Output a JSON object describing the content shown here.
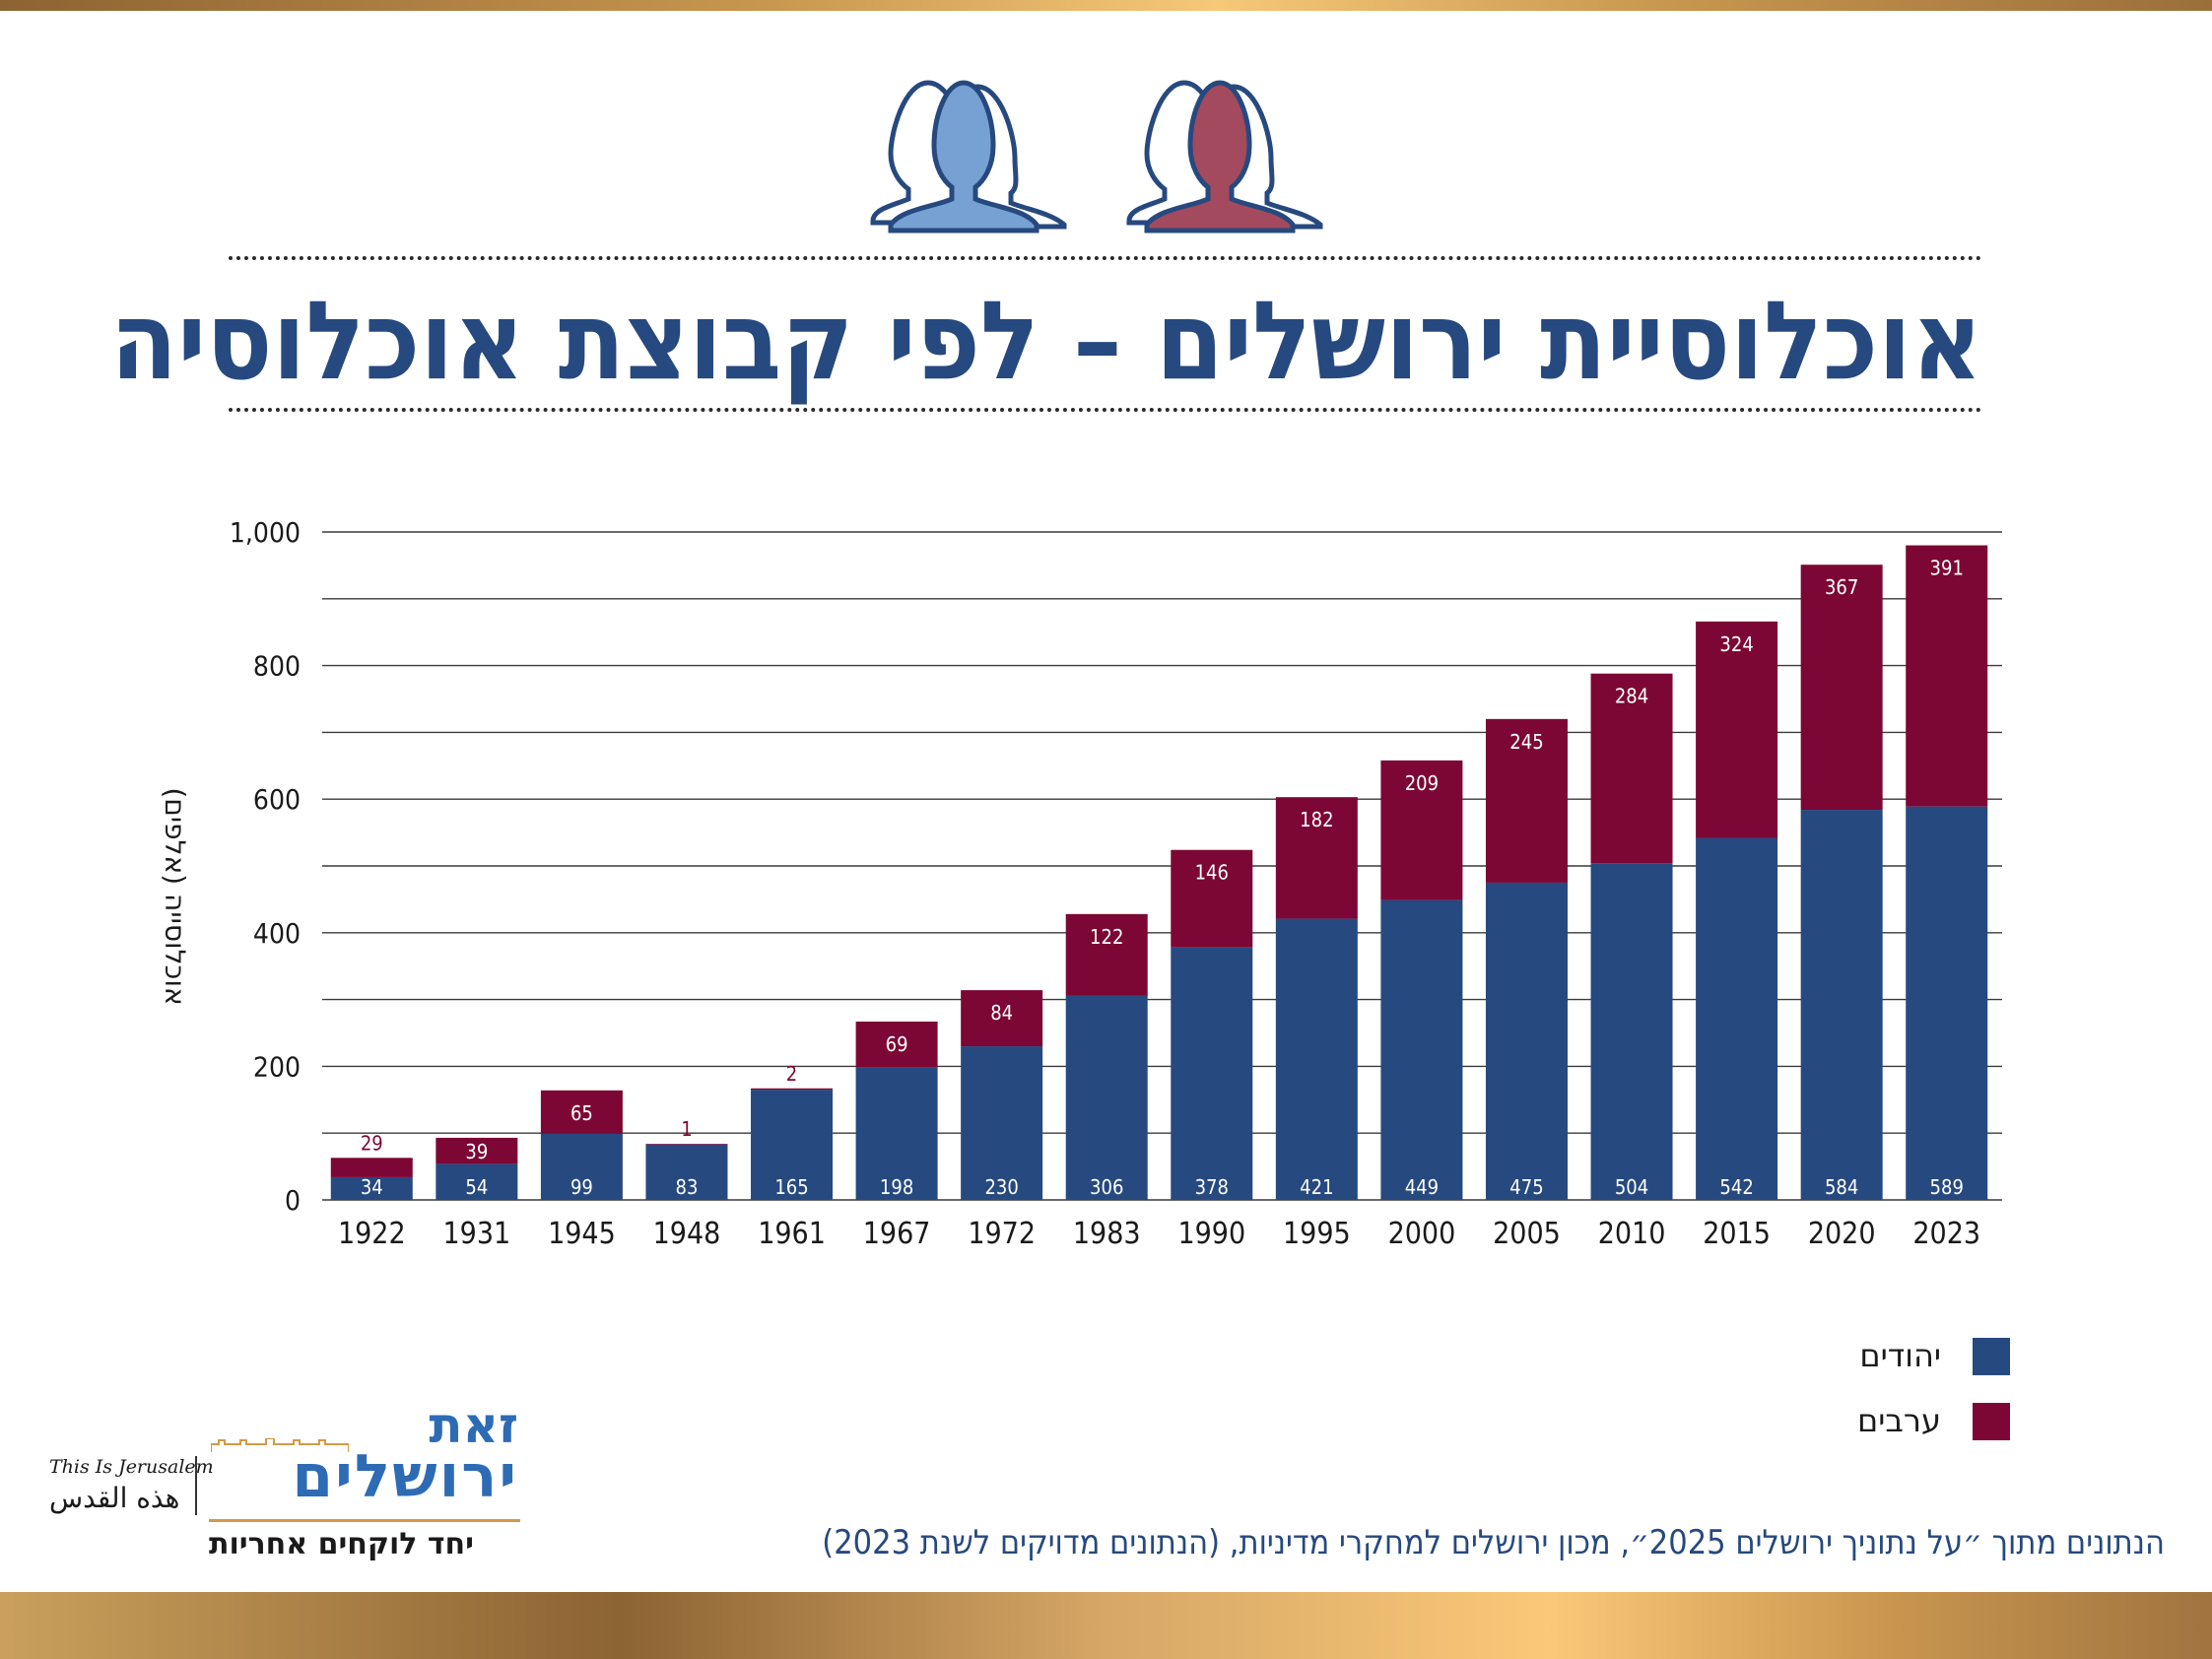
{
  "title": "אוכלוסיית ירושלים – לפי קבוצת אוכלוסיה",
  "legend": [
    {
      "label": "יהודים",
      "color": "#26497f"
    },
    {
      "label": "ערבים",
      "color": "#7d0734"
    }
  ],
  "footer_note": "הנתונים מתוך ״על נתוניך ירושלים 2025״, מכון ירושלים למחקרי מדיניות, (הנתונים מדויקים לשנת 2023)",
  "logo": {
    "english": "This Is Jerusalem",
    "arabic": "هذه القدس",
    "hebrew_top": "זאת",
    "hebrew_main": "ירושלים",
    "tagline": "יחד לוקחים אחריות"
  },
  "icons": [
    {
      "name": "jews-people-icon",
      "fill": "#77a1d3",
      "stroke": "#26497f"
    },
    {
      "name": "arabs-people-icon",
      "fill": "#a34a5e",
      "stroke": "#26497f"
    }
  ],
  "chart_data": {
    "type": "bar",
    "stacked": true,
    "categories": [
      "1922",
      "1931",
      "1945",
      "1948",
      "1961",
      "1967",
      "1972",
      "1983",
      "1990",
      "1995",
      "2000",
      "2005",
      "2010",
      "2015",
      "2020",
      "2023"
    ],
    "series": [
      {
        "name": "יהודים",
        "color": "#26497f",
        "values": [
          34,
          54,
          99,
          83,
          165,
          198,
          230,
          306,
          378,
          421,
          449,
          475,
          504,
          542,
          584,
          589
        ]
      },
      {
        "name": "ערבים",
        "color": "#7d0734",
        "values": [
          29,
          39,
          65,
          1,
          2,
          69,
          84,
          122,
          146,
          182,
          209,
          245,
          284,
          324,
          367,
          391
        ]
      }
    ],
    "ylabel": "אוכלוסייה (אלפים)",
    "xlabel": "",
    "ylim": [
      0,
      1000
    ],
    "yticks": [
      0,
      200,
      400,
      600,
      800,
      1000
    ],
    "ytick_labels": [
      "0",
      "200",
      "400",
      "600",
      "800",
      "1,000"
    ],
    "grid": true,
    "legend_position": "bottom-right"
  }
}
